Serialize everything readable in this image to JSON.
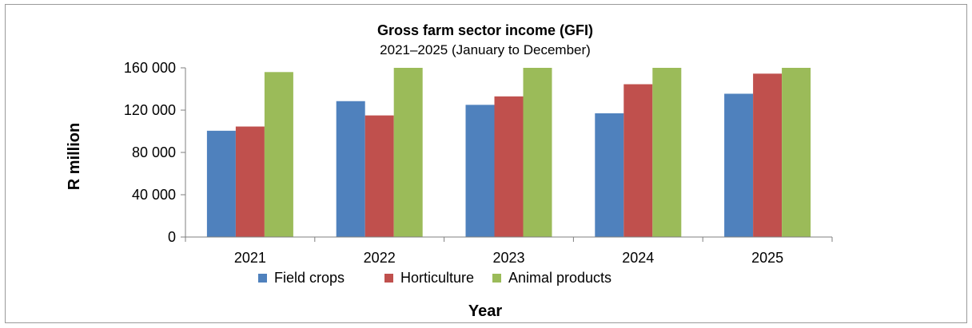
{
  "chart_data": {
    "type": "bar",
    "title": "Gross farm sector income (GFI)",
    "subtitle": "2021–2025 (January to December)",
    "xlabel": "Year",
    "ylabel": "R million",
    "categories": [
      "2021",
      "2022",
      "2023",
      "2024",
      "2025"
    ],
    "ylim": [
      0,
      160000
    ],
    "yticks": [
      0,
      40000,
      80000,
      120000,
      160000
    ],
    "ytick_labels": [
      "0",
      "40 000",
      "80 000",
      "120 000",
      "160 000"
    ],
    "grid": false,
    "legend_position": "bottom",
    "series": [
      {
        "name": "Field crops",
        "color": "#4f81bd",
        "values": [
          100500,
          128500,
          125000,
          117000,
          135500
        ]
      },
      {
        "name": "Horticulture",
        "color": "#c0504d",
        "values": [
          104500,
          115000,
          133000,
          144500,
          154500
        ]
      },
      {
        "name": "Animal products",
        "color": "#9bbb59",
        "values": [
          156000,
          160000,
          160000,
          160000,
          160000
        ]
      }
    ]
  }
}
